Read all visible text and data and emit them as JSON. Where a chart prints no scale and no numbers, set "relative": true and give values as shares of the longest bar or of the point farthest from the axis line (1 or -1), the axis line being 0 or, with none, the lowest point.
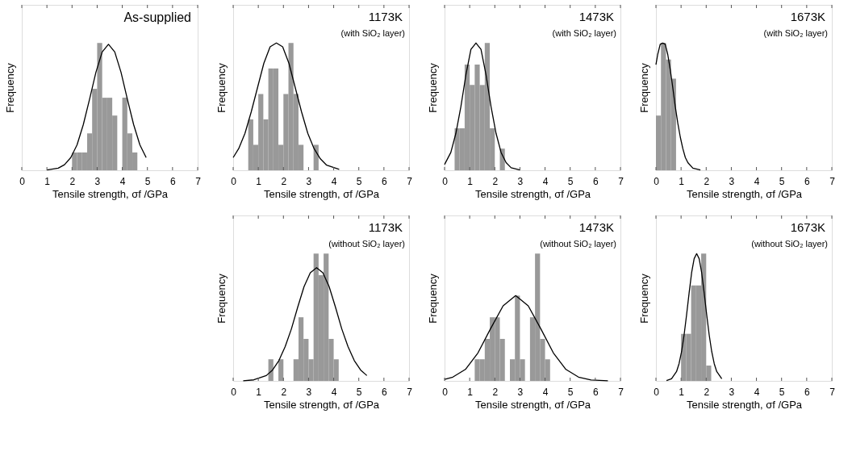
{
  "chart_data": [
    {
      "type": "histogram",
      "title": "As-supplied",
      "xlabel": "Tensile strength, σf /GPa",
      "ylabel": "Frequency",
      "relative": true,
      "xlim": [
        0,
        7
      ],
      "xticks": [
        0,
        1,
        2,
        3,
        4,
        5,
        6,
        7
      ],
      "color": "#999999",
      "bins": [
        2.0,
        2.2,
        2.4,
        2.6,
        2.8,
        3.0,
        3.2,
        3.4,
        3.6,
        3.8,
        4.0,
        4.2,
        4.4,
        4.6
      ],
      "values": [
        0.14,
        0.14,
        0.14,
        0.29,
        0.64,
        1,
        0.57,
        0.57,
        0.43,
        0,
        0.57,
        0.29,
        0.14
      ],
      "series": [
        {
          "type": "line",
          "color": "#000000",
          "x": [
            1.0,
            1.45,
            1.7,
            1.95,
            2.2,
            2.45,
            2.7,
            2.95,
            3.2,
            3.45,
            3.7,
            3.95,
            4.2,
            4.45,
            4.7,
            4.95
          ],
          "values": [
            0.002,
            0.017,
            0.044,
            0.1,
            0.2,
            0.36,
            0.56,
            0.77,
            0.93,
            0.99,
            0.93,
            0.77,
            0.56,
            0.36,
            0.2,
            0.1
          ]
        }
      ]
    },
    {
      "type": "histogram",
      "title": "1173K",
      "subtitle": "(with SiO₂ layer)",
      "xlabel": "Tensile strength, σf /GPa",
      "ylabel": "Frequency",
      "relative": true,
      "xlim": [
        0,
        7
      ],
      "xticks": [
        0,
        1,
        2,
        3,
        4,
        5,
        6,
        7
      ],
      "color": "#999999",
      "bins": [
        0.6,
        0.8,
        1.0,
        1.2,
        1.4,
        1.6,
        1.8,
        2.0,
        2.2,
        2.4,
        2.6,
        2.8,
        3.0,
        3.2,
        3.4
      ],
      "values": [
        0.4,
        0.2,
        0.6,
        0.4,
        0.8,
        0.8,
        0.2,
        0.6,
        1,
        0.6,
        0.2,
        0,
        0,
        0.2
      ],
      "series": [
        {
          "type": "line",
          "color": "#000000",
          "x": [
            0,
            0.22,
            0.47,
            0.72,
            0.97,
            1.22,
            1.47,
            1.72,
            1.97,
            2.22,
            2.47,
            2.72,
            2.97,
            3.22,
            3.47,
            3.72,
            4.22
          ],
          "values": [
            0.1,
            0.17,
            0.29,
            0.46,
            0.65,
            0.84,
            0.97,
            1.0,
            0.97,
            0.84,
            0.65,
            0.46,
            0.29,
            0.17,
            0.09,
            0.04,
            0.007
          ]
        }
      ]
    },
    {
      "type": "histogram",
      "title": "1473K",
      "subtitle": "(with SiO₂ layer)",
      "xlabel": "Tensile strength, σf /GPa",
      "ylabel": "Frequency",
      "relative": true,
      "xlim": [
        0,
        7
      ],
      "xticks": [
        0,
        1,
        2,
        3,
        4,
        5,
        6,
        7
      ],
      "color": "#999999",
      "bins": [
        0.4,
        0.6,
        0.8,
        1.0,
        1.2,
        1.4,
        1.6,
        1.8,
        2.0,
        2.2,
        2.4
      ],
      "values": [
        0.33,
        0.33,
        0.83,
        0.67,
        0.83,
        0.67,
        1,
        0.33,
        0,
        0.17
      ],
      "series": [
        {
          "type": "line",
          "color": "#000000",
          "x": [
            0,
            0.25,
            0.45,
            0.65,
            0.85,
            1.05,
            1.25,
            1.45,
            1.65,
            1.85,
            2.05,
            2.25,
            2.45,
            2.65,
            3.0
          ],
          "values": [
            0.045,
            0.14,
            0.29,
            0.5,
            0.75,
            0.95,
            1.0,
            0.95,
            0.75,
            0.5,
            0.29,
            0.14,
            0.06,
            0.02,
            0.002
          ]
        }
      ]
    },
    {
      "type": "histogram",
      "title": "1673K",
      "subtitle": "(with SiO₂ layer)",
      "xlabel": "Tensile strength, σf /GPa",
      "ylabel": "Frequency",
      "relative": true,
      "xlim": [
        0,
        7
      ],
      "xticks": [
        0,
        1,
        2,
        3,
        4,
        5,
        6,
        7
      ],
      "color": "#999999",
      "bins": [
        0.0,
        0.2,
        0.4,
        0.6,
        0.8
      ],
      "values": [
        0.43,
        1,
        0.87,
        0.72
      ],
      "series": [
        {
          "type": "line",
          "color": "#000000",
          "x": [
            0,
            0.07,
            0.17,
            0.27,
            0.37,
            0.47,
            0.57,
            0.67,
            0.77,
            0.87,
            0.97,
            1.07,
            1.17,
            1.27,
            1.47,
            1.77
          ],
          "values": [
            0.83,
            0.91,
            0.99,
            1.0,
            0.99,
            0.91,
            0.79,
            0.65,
            0.5,
            0.37,
            0.26,
            0.17,
            0.1,
            0.06,
            0.017,
            0.002
          ]
        }
      ]
    },
    {
      "type": "histogram",
      "title": "1173K",
      "subtitle": "(without SiO₂ layer)",
      "xlabel": "Tensile strength, σf /GPa",
      "ylabel": "Frequency",
      "relative": true,
      "xlim": [
        0,
        7
      ],
      "xticks": [
        0,
        1,
        2,
        3,
        4,
        5,
        6,
        7
      ],
      "color": "#999999",
      "bins": [
        1.4,
        1.6,
        1.8,
        2.0,
        2.2,
        2.4,
        2.6,
        2.8,
        3.0,
        3.2,
        3.4,
        3.6,
        3.8,
        4.0,
        4.2
      ],
      "values": [
        0.17,
        0,
        0.17,
        0,
        0,
        0.17,
        0.5,
        0.33,
        0.17,
        1,
        0.83,
        1,
        0.33,
        0.17
      ],
      "series": [
        {
          "type": "line",
          "color": "#000000",
          "x": [
            0.4,
            0.82,
            1.32,
            1.57,
            1.82,
            2.07,
            2.32,
            2.57,
            2.82,
            3.07,
            3.32,
            3.57,
            3.82,
            4.07,
            4.32,
            4.57,
            4.82,
            5.07,
            5.32
          ],
          "values": [
            0.001,
            0.008,
            0.042,
            0.086,
            0.16,
            0.27,
            0.41,
            0.58,
            0.74,
            0.85,
            0.89,
            0.85,
            0.74,
            0.58,
            0.41,
            0.27,
            0.16,
            0.086,
            0.042
          ]
        }
      ]
    },
    {
      "type": "histogram",
      "title": "1473K",
      "subtitle": "(without SiO₂ layer)",
      "xlabel": "Tensile strength, σf /GPa",
      "ylabel": "Frequency",
      "relative": true,
      "xlim": [
        0,
        7
      ],
      "xticks": [
        0,
        1,
        2,
        3,
        4,
        5,
        6,
        7
      ],
      "color": "#999999",
      "bins": [
        1.2,
        1.4,
        1.6,
        1.8,
        2.0,
        2.2,
        2.4,
        2.6,
        2.8,
        3.0,
        3.2,
        3.4,
        3.6,
        3.8,
        4.0,
        4.2
      ],
      "values": [
        0.17,
        0.17,
        0.33,
        0.5,
        0.5,
        0.33,
        0,
        0.17,
        0.67,
        0.17,
        0,
        0.5,
        1,
        0.33,
        0.17
      ],
      "series": [
        {
          "type": "line",
          "color": "#000000",
          "x": [
            0,
            0.33,
            0.83,
            1.33,
            1.83,
            2.33,
            2.83,
            3.33,
            3.83,
            4.33,
            4.83,
            5.33,
            5.83,
            6.5
          ],
          "values": [
            0.012,
            0.03,
            0.09,
            0.22,
            0.41,
            0.59,
            0.67,
            0.59,
            0.41,
            0.22,
            0.09,
            0.03,
            0.007,
            0.001
          ]
        }
      ]
    },
    {
      "type": "histogram",
      "title": "1673K",
      "subtitle": "(without SiO₂ layer)",
      "xlabel": "Tensile strength, σf /GPa",
      "ylabel": "Frequency",
      "relative": true,
      "xlim": [
        0,
        7
      ],
      "xticks": [
        0,
        1,
        2,
        3,
        4,
        5,
        6,
        7
      ],
      "color": "#999999",
      "bins": [
        1.0,
        1.2,
        1.4,
        1.6,
        1.8,
        2.0,
        2.2
      ],
      "values": [
        0.37,
        0.37,
        0.75,
        0.75,
        1,
        0.12
      ],
      "series": [
        {
          "type": "line",
          "color": "#000000",
          "x": [
            0.42,
            0.62,
            0.82,
            0.92,
            1.02,
            1.12,
            1.22,
            1.32,
            1.42,
            1.52,
            1.62,
            1.72,
            1.82,
            1.92,
            2.02,
            2.12,
            2.22,
            2.32,
            2.42,
            2.62
          ],
          "values": [
            0.003,
            0.017,
            0.073,
            0.135,
            0.23,
            0.36,
            0.52,
            0.69,
            0.85,
            0.96,
            1.0,
            0.96,
            0.85,
            0.69,
            0.52,
            0.36,
            0.23,
            0.135,
            0.073,
            0.017
          ]
        }
      ]
    }
  ]
}
